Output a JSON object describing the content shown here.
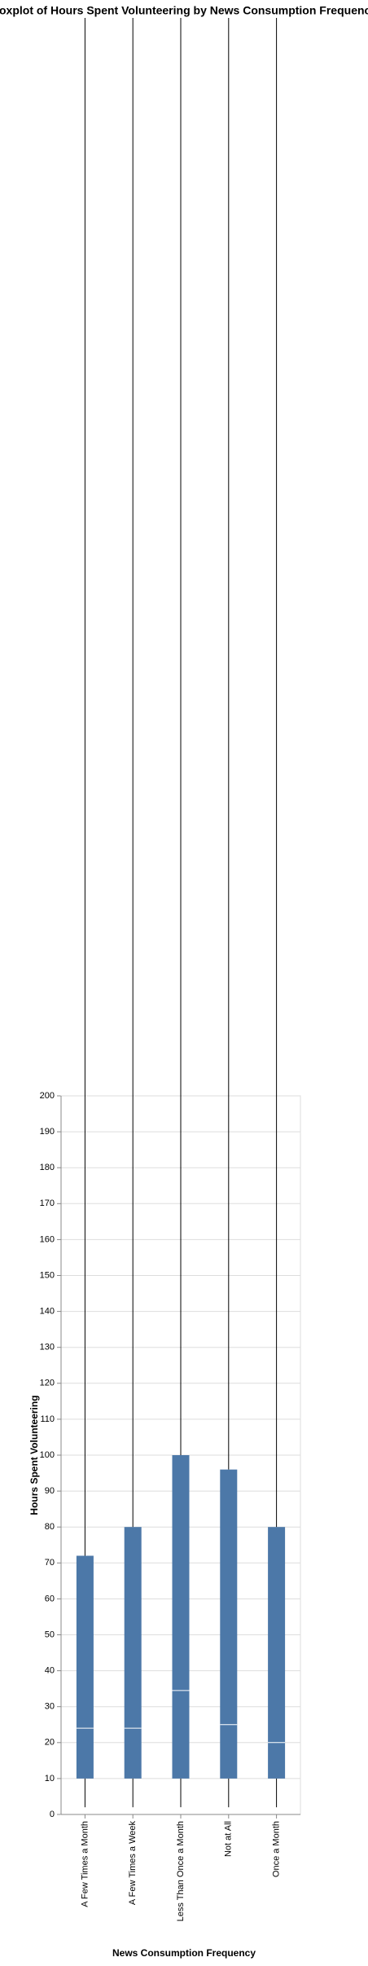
{
  "chart_data": {
    "type": "boxplot",
    "title": "Boxplot of Hours Spent Volunteering by News Consumption Frequency",
    "x_label": "News Consumption Frequency",
    "y_label": "Hours Spent Volunteering",
    "categories": [
      "A Few Times a Month",
      "A Few Times a Week",
      "Less Than Once a Month",
      "Not at All",
      "Once a Month"
    ],
    "min": [
      2,
      2,
      2,
      2,
      2
    ],
    "q1": [
      10,
      10,
      10,
      10,
      10
    ],
    "median": [
      24,
      24,
      34.5,
      25,
      20
    ],
    "q3": [
      72,
      80,
      100,
      96,
      80
    ],
    "max": [
      500,
      500,
      500,
      500,
      500
    ],
    "color": "#4c78a8",
    "median_color": "#ffffff",
    "whisker_color": "#000000",
    "ylim": [
      0,
      200
    ],
    "yticks": [
      0,
      10,
      20,
      30,
      40,
      50,
      60,
      70,
      80,
      90,
      100,
      110,
      120,
      130,
      140,
      150,
      160,
      170,
      180,
      190,
      200
    ],
    "grid": true
  }
}
